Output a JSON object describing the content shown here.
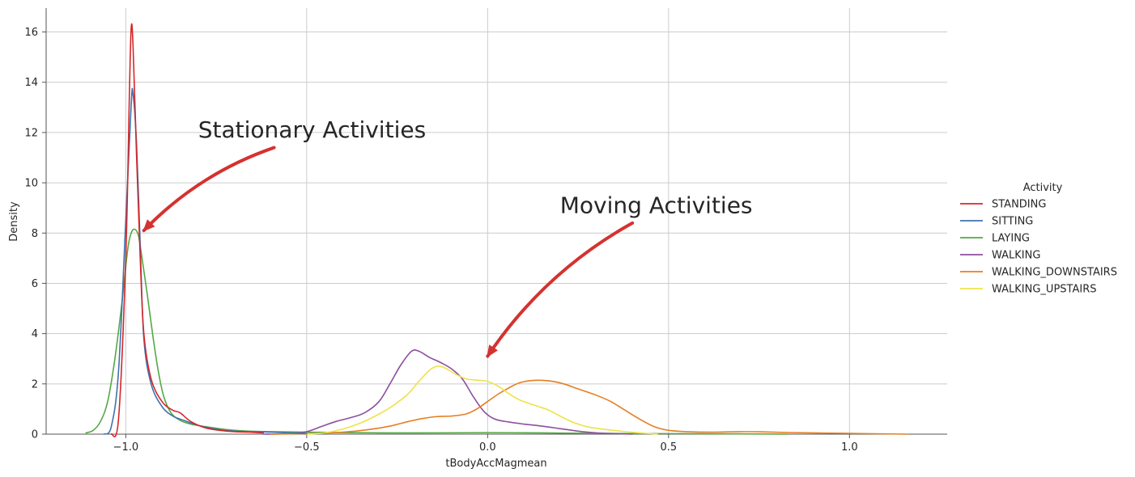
{
  "chart_data": {
    "type": "line",
    "xlabel": "tBodyAccMagmean",
    "ylabel": "Density",
    "xlim": [
      -1.22,
      1.27
    ],
    "ylim": [
      0,
      16.95
    ],
    "x_ticks": [
      -1.0,
      -0.5,
      0.0,
      0.5,
      1.0
    ],
    "x_tick_labels": [
      "−1.0",
      "−0.5",
      "0.0",
      "0.5",
      "1.0"
    ],
    "y_ticks": [
      0,
      2,
      4,
      6,
      8,
      10,
      12,
      14,
      16
    ],
    "y_tick_labels": [
      "0",
      "2",
      "4",
      "6",
      "8",
      "10",
      "12",
      "14",
      "16"
    ],
    "grid": true,
    "legend": {
      "title": "Activity",
      "placement": "right"
    },
    "series": [
      {
        "name": "STANDING",
        "color": "#d62728",
        "points": [
          [
            -1.04,
            0
          ],
          [
            -1.02,
            0.6
          ],
          [
            -1.0,
            7.0
          ],
          [
            -0.99,
            13.5
          ],
          [
            -0.985,
            16.15
          ],
          [
            -0.98,
            15.5
          ],
          [
            -0.97,
            11.0
          ],
          [
            -0.96,
            7.0
          ],
          [
            -0.95,
            4.0
          ],
          [
            -0.93,
            2.2
          ],
          [
            -0.9,
            1.3
          ],
          [
            -0.87,
            0.95
          ],
          [
            -0.85,
            0.85
          ],
          [
            -0.82,
            0.5
          ],
          [
            -0.78,
            0.25
          ],
          [
            -0.74,
            0.15
          ],
          [
            -0.7,
            0.1
          ],
          [
            -0.66,
            0.08
          ],
          [
            -0.62,
            0.05
          ]
        ]
      },
      {
        "name": "SITTING",
        "color": "#3f72af",
        "points": [
          [
            -1.06,
            0
          ],
          [
            -1.04,
            0.3
          ],
          [
            -1.02,
            2.5
          ],
          [
            -1.0,
            8.5
          ],
          [
            -0.985,
            13.1
          ],
          [
            -0.98,
            13.55
          ],
          [
            -0.97,
            11.5
          ],
          [
            -0.96,
            7.5
          ],
          [
            -0.95,
            3.8
          ],
          [
            -0.93,
            2.0
          ],
          [
            -0.9,
            1.1
          ],
          [
            -0.87,
            0.72
          ],
          [
            -0.84,
            0.55
          ],
          [
            -0.8,
            0.35
          ],
          [
            -0.75,
            0.2
          ],
          [
            -0.7,
            0.12
          ],
          [
            -0.65,
            0.1
          ],
          [
            -0.6,
            0.08
          ],
          [
            -0.55,
            0.05
          ],
          [
            -0.5,
            0.03
          ]
        ]
      },
      {
        "name": "LAYING",
        "color": "#55a845",
        "points": [
          [
            -1.11,
            0.05
          ],
          [
            -1.09,
            0.15
          ],
          [
            -1.07,
            0.5
          ],
          [
            -1.05,
            1.3
          ],
          [
            -1.03,
            3.0
          ],
          [
            -1.01,
            5.3
          ],
          [
            -0.995,
            7.3
          ],
          [
            -0.985,
            8.0
          ],
          [
            -0.975,
            8.15
          ],
          [
            -0.965,
            7.9
          ],
          [
            -0.955,
            7.0
          ],
          [
            -0.94,
            5.5
          ],
          [
            -0.925,
            3.9
          ],
          [
            -0.91,
            2.5
          ],
          [
            -0.895,
            1.5
          ],
          [
            -0.875,
            0.85
          ],
          [
            -0.85,
            0.55
          ],
          [
            -0.82,
            0.4
          ],
          [
            -0.78,
            0.3
          ],
          [
            -0.72,
            0.18
          ],
          [
            -0.66,
            0.12
          ],
          [
            -0.6,
            0.1
          ],
          [
            -0.5,
            0.08
          ],
          [
            -0.4,
            0.06
          ],
          [
            -0.2,
            0.05
          ],
          [
            0.0,
            0.06
          ],
          [
            0.15,
            0.05
          ],
          [
            0.3,
            0.03
          ],
          [
            0.5,
            0.02
          ],
          [
            0.7,
            0.01
          ],
          [
            0.83,
            0.0
          ]
        ]
      },
      {
        "name": "WALKING",
        "color": "#8c4f9e",
        "points": [
          [
            -0.62,
            0
          ],
          [
            -0.55,
            0.02
          ],
          [
            -0.5,
            0.1
          ],
          [
            -0.46,
            0.3
          ],
          [
            -0.42,
            0.5
          ],
          [
            -0.38,
            0.65
          ],
          [
            -0.34,
            0.85
          ],
          [
            -0.3,
            1.3
          ],
          [
            -0.27,
            2.0
          ],
          [
            -0.24,
            2.75
          ],
          [
            -0.21,
            3.3
          ],
          [
            -0.19,
            3.3
          ],
          [
            -0.16,
            3.05
          ],
          [
            -0.13,
            2.85
          ],
          [
            -0.1,
            2.6
          ],
          [
            -0.07,
            2.2
          ],
          [
            -0.04,
            1.5
          ],
          [
            -0.01,
            0.9
          ],
          [
            0.02,
            0.6
          ],
          [
            0.06,
            0.48
          ],
          [
            0.1,
            0.4
          ],
          [
            0.15,
            0.32
          ],
          [
            0.2,
            0.22
          ],
          [
            0.25,
            0.12
          ],
          [
            0.3,
            0.05
          ],
          [
            0.35,
            0.02
          ],
          [
            0.4,
            0
          ]
        ]
      },
      {
        "name": "WALKING_DOWNSTAIRS",
        "color": "#e67e22",
        "points": [
          [
            -0.6,
            0
          ],
          [
            -0.5,
            0.02
          ],
          [
            -0.4,
            0.08
          ],
          [
            -0.33,
            0.18
          ],
          [
            -0.27,
            0.32
          ],
          [
            -0.22,
            0.5
          ],
          [
            -0.18,
            0.62
          ],
          [
            -0.14,
            0.7
          ],
          [
            -0.1,
            0.72
          ],
          [
            -0.06,
            0.8
          ],
          [
            -0.03,
            1.0
          ],
          [
            0.0,
            1.3
          ],
          [
            0.03,
            1.6
          ],
          [
            0.06,
            1.85
          ],
          [
            0.09,
            2.05
          ],
          [
            0.13,
            2.14
          ],
          [
            0.17,
            2.12
          ],
          [
            0.21,
            2.0
          ],
          [
            0.25,
            1.8
          ],
          [
            0.3,
            1.55
          ],
          [
            0.34,
            1.3
          ],
          [
            0.38,
            0.95
          ],
          [
            0.42,
            0.6
          ],
          [
            0.46,
            0.3
          ],
          [
            0.5,
            0.15
          ],
          [
            0.55,
            0.1
          ],
          [
            0.62,
            0.08
          ],
          [
            0.7,
            0.1
          ],
          [
            0.76,
            0.09
          ],
          [
            0.85,
            0.06
          ],
          [
            0.95,
            0.04
          ],
          [
            1.05,
            0.02
          ],
          [
            1.16,
            0.0
          ]
        ]
      },
      {
        "name": "WALKING_UPSTAIRS",
        "color": "#eee24a",
        "points": [
          [
            -0.5,
            0
          ],
          [
            -0.45,
            0.05
          ],
          [
            -0.4,
            0.2
          ],
          [
            -0.35,
            0.45
          ],
          [
            -0.3,
            0.8
          ],
          [
            -0.26,
            1.15
          ],
          [
            -0.22,
            1.6
          ],
          [
            -0.19,
            2.1
          ],
          [
            -0.16,
            2.55
          ],
          [
            -0.14,
            2.7
          ],
          [
            -0.12,
            2.65
          ],
          [
            -0.09,
            2.4
          ],
          [
            -0.06,
            2.2
          ],
          [
            -0.03,
            2.15
          ],
          [
            0.0,
            2.1
          ],
          [
            0.03,
            1.9
          ],
          [
            0.06,
            1.6
          ],
          [
            0.09,
            1.35
          ],
          [
            0.13,
            1.15
          ],
          [
            0.17,
            0.95
          ],
          [
            0.2,
            0.72
          ],
          [
            0.24,
            0.45
          ],
          [
            0.28,
            0.28
          ],
          [
            0.33,
            0.18
          ],
          [
            0.38,
            0.1
          ],
          [
            0.42,
            0.05
          ],
          [
            0.47,
            0.0
          ]
        ]
      }
    ],
    "annotations": [
      {
        "text": "Stationary Activities",
        "text_at": [
          -0.8,
          11.8
        ],
        "arrow_from": [
          -0.59,
          11.4
        ],
        "arrow_to": [
          -0.95,
          8.1
        ]
      },
      {
        "text": "Moving Activities",
        "text_at": [
          0.2,
          8.8
        ],
        "arrow_from": [
          0.4,
          8.4
        ],
        "arrow_to": [
          0.0,
          3.1
        ]
      }
    ],
    "annotation_color": "#d43230"
  }
}
